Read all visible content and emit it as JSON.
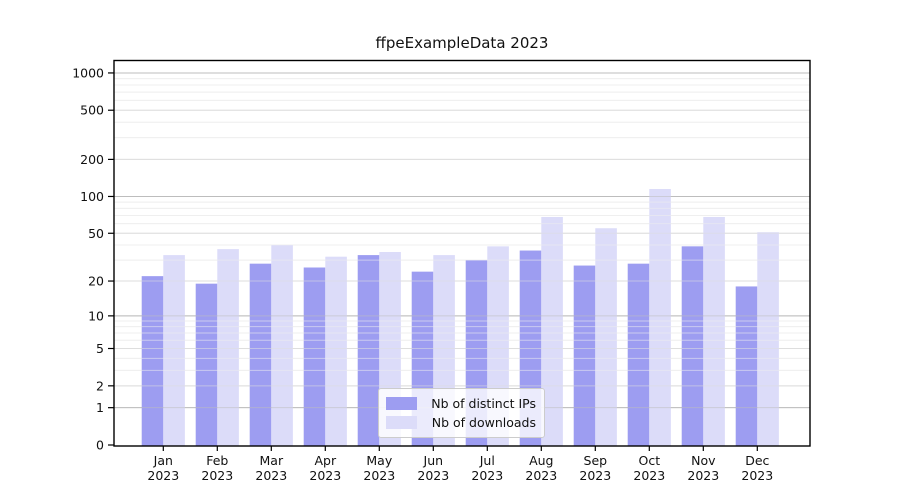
{
  "title": "ffpeExampleData 2023",
  "background_color": "#ffffff",
  "legend": [
    {
      "label": "Nb of distinct IPs",
      "color": "#9d9df1"
    },
    {
      "label": "Nb of downloads",
      "color": "#dcdcf9"
    }
  ],
  "chart_data": {
    "type": "bar",
    "title": "ffpeExampleData 2023",
    "xlabel": "",
    "ylabel": "",
    "categories": [
      "Jan 2023",
      "Feb 2023",
      "Mar 2023",
      "Apr 2023",
      "May 2023",
      "Jun 2023",
      "Jul 2023",
      "Aug 2023",
      "Sep 2023",
      "Oct 2023",
      "Nov 2023",
      "Dec 2023"
    ],
    "series": [
      {
        "name": "Nb of distinct IPs",
        "color": "#9d9df1",
        "values": [
          22,
          19,
          28,
          26,
          33,
          24,
          30,
          36,
          27,
          28,
          39,
          18
        ]
      },
      {
        "name": "Nb of downloads",
        "color": "#dcdcf9",
        "values": [
          33,
          37,
          40,
          32,
          35,
          33,
          39,
          68,
          55,
          115,
          68,
          51
        ]
      }
    ],
    "y_scale": "log1p",
    "y_ticks": [
      0,
      1,
      2,
      5,
      10,
      20,
      50,
      100,
      200,
      500,
      1000
    ],
    "y_minor_ticks": [
      3,
      4,
      6,
      7,
      8,
      9,
      30,
      40,
      60,
      70,
      80,
      90,
      300,
      400,
      600,
      700,
      800,
      900
    ],
    "ylim": [
      0,
      1000
    ],
    "grid": "on",
    "legend_position": "bottom-center-inside",
    "grid_major_color": "#bdbdbd",
    "grid_mid_color": "#dedede",
    "grid_minor_color": "#efefef",
    "axis_color": "#000000",
    "tick_label_color": "#111111"
  }
}
